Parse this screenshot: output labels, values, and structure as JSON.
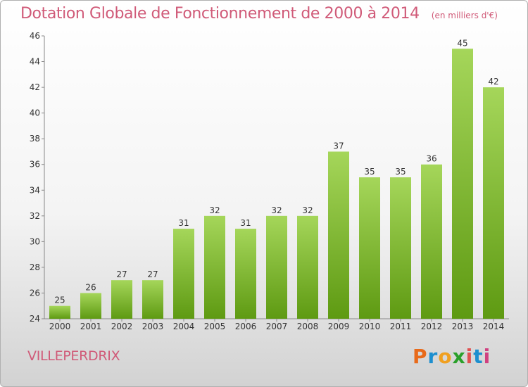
{
  "header": {
    "title": "Dotation Globale de Fonctionnement de 2000 à 2014",
    "subtitle": "(en milliers d'€)"
  },
  "footer": {
    "city": "VILLEPERDRIX",
    "logo_text": "Proxiti"
  },
  "colors": {
    "bar_light": "#a5d65a",
    "bar_dark": "#5e9a12",
    "title": "#d05a78",
    "logo_letters": [
      "#e86a1a",
      "#1d8fcf",
      "#f0a020",
      "#2aa02a",
      "#e05050",
      "#1d8fcf",
      "#d04080"
    ]
  },
  "chart_data": {
    "type": "bar",
    "categories": [
      "2000",
      "2001",
      "2002",
      "2003",
      "2004",
      "2005",
      "2006",
      "2007",
      "2008",
      "2009",
      "2010",
      "2011",
      "2012",
      "2013",
      "2014"
    ],
    "values": [
      25,
      26,
      27,
      27,
      31,
      32,
      31,
      32,
      32,
      37,
      35,
      35,
      36,
      45,
      42
    ],
    "ylim": [
      24,
      46
    ],
    "yticks": [
      24,
      26,
      28,
      30,
      32,
      34,
      36,
      38,
      40,
      42,
      44,
      46
    ],
    "grid": false,
    "data_labels": true
  }
}
